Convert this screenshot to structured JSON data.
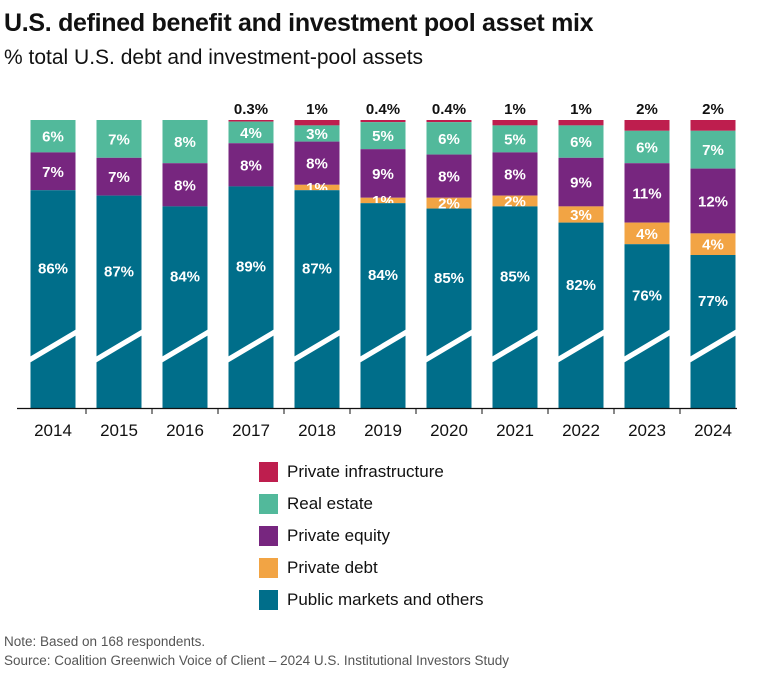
{
  "title": "U.S. defined benefit and investment pool asset mix",
  "subtitle": "% total U.S. debt and investment-pool assets",
  "chart_data": {
    "type": "bar",
    "stacked": true,
    "axis_break": true,
    "categories": [
      "2014",
      "2015",
      "2016",
      "2017",
      "2018",
      "2019",
      "2020",
      "2021",
      "2022",
      "2023",
      "2024"
    ],
    "series": [
      {
        "name": "Public markets and others",
        "color": "#006e8a",
        "values": [
          86,
          87,
          84,
          89,
          87,
          84,
          85,
          85,
          82,
          76,
          77
        ],
        "labels": [
          "86%",
          "87%",
          "84%",
          "89%",
          "87%",
          "84%",
          "85%",
          "85%",
          "82%",
          "76%",
          "77%"
        ]
      },
      {
        "name": "Private debt",
        "color": "#f2a444",
        "values": [
          null,
          null,
          null,
          null,
          1,
          1,
          2,
          2,
          3,
          4,
          4
        ],
        "labels": [
          null,
          null,
          null,
          null,
          "1%",
          "1%",
          "2%",
          "2%",
          "3%",
          "4%",
          "4%"
        ]
      },
      {
        "name": "Private equity",
        "color": "#77267f",
        "values": [
          7,
          7,
          8,
          8,
          8,
          9,
          8,
          8,
          9,
          11,
          12
        ],
        "labels": [
          "7%",
          "7%",
          "8%",
          "8%",
          "8%",
          "9%",
          "8%",
          "8%",
          "9%",
          "11%",
          "12%"
        ]
      },
      {
        "name": "Real estate",
        "color": "#52b99b",
        "values": [
          6,
          7,
          8,
          4,
          3,
          5,
          6,
          5,
          6,
          6,
          7
        ],
        "labels": [
          "6%",
          "7%",
          "8%",
          "4%",
          "3%",
          "5%",
          "6%",
          "5%",
          "6%",
          "6%",
          "7%"
        ]
      },
      {
        "name": "Private infrastructure",
        "color": "#be1e4e",
        "values": [
          null,
          null,
          null,
          0.3,
          1,
          0.4,
          0.4,
          1,
          1,
          2,
          2
        ],
        "labels": [
          null,
          null,
          null,
          "0.3%",
          "1%",
          "0.4%",
          "0.4%",
          "1%",
          "1%",
          "2%",
          "2%"
        ]
      }
    ],
    "legend_position": "bottom",
    "grid": false
  },
  "legend": [
    {
      "label": "Private infrastructure",
      "color": "#be1e4e"
    },
    {
      "label": "Real estate",
      "color": "#52b99b"
    },
    {
      "label": "Private equity",
      "color": "#77267f"
    },
    {
      "label": "Private debt",
      "color": "#f2a444"
    },
    {
      "label": "Public markets and others",
      "color": "#006e8a"
    }
  ],
  "note": "Note: Based on 168 respondents.",
  "source": "Source: Coalition Greenwich Voice of Client – 2024 U.S. Institutional Investors Study"
}
